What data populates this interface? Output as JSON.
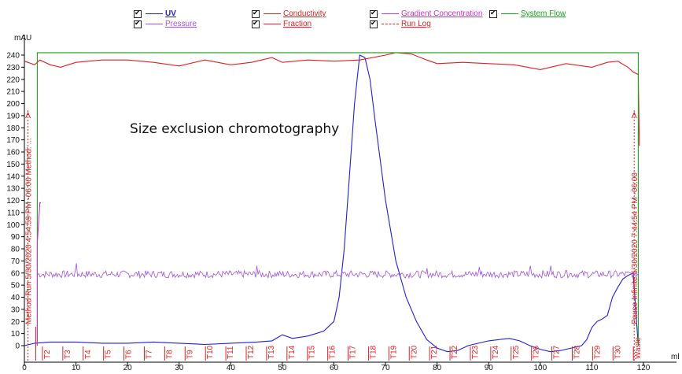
{
  "legend": [
    {
      "label": "UV",
      "color": "#1f1fd6",
      "bold": true
    },
    {
      "label": "Conductivity",
      "color": "#e02020"
    },
    {
      "label": "Gradient Concentration",
      "color": "#cc33cc"
    },
    {
      "label": "System Flow",
      "color": "#1aa01a"
    },
    {
      "label": "Pressure",
      "color": "#a050e0"
    },
    {
      "label": "Fraction",
      "color": "#e02020"
    },
    {
      "label": "Run Log",
      "color": "#e02020"
    }
  ],
  "chart_data": {
    "type": "line",
    "title": "Size exclusion chromotography",
    "ylabel": "mAU",
    "xlabel": "ml",
    "xlim": [
      0,
      120
    ],
    "ylim": [
      0,
      240
    ],
    "x_ticks": [
      0,
      10,
      20,
      30,
      40,
      50,
      60,
      70,
      80,
      90,
      100,
      110,
      120
    ],
    "y_ticks": [
      0,
      10,
      20,
      30,
      40,
      50,
      60,
      70,
      80,
      90,
      100,
      110,
      120,
      130,
      140,
      150,
      160,
      170,
      180,
      190,
      200,
      210,
      220,
      230,
      240
    ],
    "series": [
      {
        "name": "UV",
        "color": "#1f1fd6",
        "points": [
          [
            0,
            0
          ],
          [
            2,
            2
          ],
          [
            5,
            3
          ],
          [
            10,
            3
          ],
          [
            15,
            2
          ],
          [
            20,
            2
          ],
          [
            25,
            3
          ],
          [
            30,
            2
          ],
          [
            35,
            1
          ],
          [
            40,
            2
          ],
          [
            45,
            3
          ],
          [
            48,
            4
          ],
          [
            50,
            9
          ],
          [
            52,
            6
          ],
          [
            55,
            8
          ],
          [
            58,
            12
          ],
          [
            60,
            20
          ],
          [
            61,
            40
          ],
          [
            62,
            80
          ],
          [
            63,
            140
          ],
          [
            64,
            200
          ],
          [
            65,
            240
          ],
          [
            66,
            238
          ],
          [
            67,
            220
          ],
          [
            68,
            185
          ],
          [
            70,
            120
          ],
          [
            72,
            70
          ],
          [
            74,
            40
          ],
          [
            76,
            20
          ],
          [
            78,
            5
          ],
          [
            80,
            -2
          ],
          [
            82,
            -5
          ],
          [
            84,
            -4
          ],
          [
            86,
            0
          ],
          [
            88,
            2
          ],
          [
            90,
            4
          ],
          [
            92,
            5
          ],
          [
            94,
            6
          ],
          [
            96,
            4
          ],
          [
            98,
            0
          ],
          [
            100,
            -3
          ],
          [
            102,
            -5
          ],
          [
            104,
            -4
          ],
          [
            106,
            -2
          ],
          [
            108,
            0
          ],
          [
            109,
            5
          ],
          [
            110,
            15
          ],
          [
            111,
            20
          ],
          [
            112,
            22
          ],
          [
            113,
            25
          ],
          [
            114,
            40
          ],
          [
            115,
            48
          ],
          [
            116,
            55
          ],
          [
            117,
            58
          ],
          [
            118,
            60
          ],
          [
            119,
            0
          ]
        ]
      },
      {
        "name": "Conductivity",
        "color": "#e02020",
        "points": [
          [
            0,
            235
          ],
          [
            2,
            232
          ],
          [
            3,
            236
          ],
          [
            5,
            232
          ],
          [
            7,
            230
          ],
          [
            10,
            234
          ],
          [
            15,
            236
          ],
          [
            20,
            236
          ],
          [
            25,
            234
          ],
          [
            30,
            231
          ],
          [
            35,
            236
          ],
          [
            40,
            232
          ],
          [
            44,
            234
          ],
          [
            48,
            238
          ],
          [
            50,
            234
          ],
          [
            55,
            236
          ],
          [
            60,
            235
          ],
          [
            65,
            236
          ],
          [
            70,
            240
          ],
          [
            72,
            242
          ],
          [
            75,
            241
          ],
          [
            78,
            236
          ],
          [
            80,
            233
          ],
          [
            85,
            234
          ],
          [
            90,
            233
          ],
          [
            95,
            232
          ],
          [
            100,
            228
          ],
          [
            105,
            233
          ],
          [
            110,
            230
          ],
          [
            113,
            234
          ],
          [
            115,
            235
          ],
          [
            117,
            230
          ],
          [
            118,
            226
          ],
          [
            119,
            224
          ],
          [
            119.2,
            165
          ]
        ]
      },
      {
        "name": "System Flow",
        "color": "#1aa01a",
        "points": [
          [
            2.5,
            0
          ],
          [
            2.5,
            242
          ],
          [
            119,
            242
          ],
          [
            119,
            0
          ]
        ]
      },
      {
        "name": "Pressure",
        "color": "#a050e0",
        "base": 60,
        "noise": 3,
        "start": 2.5,
        "end": 119,
        "spikes": [
          [
            10,
            68
          ],
          [
            45,
            66
          ],
          [
            78,
            64
          ],
          [
            88,
            65
          ],
          [
            98,
            66
          ],
          [
            102,
            66
          ],
          [
            105,
            62
          ]
        ]
      },
      {
        "name": "Gradient Concentration",
        "color": "#cc33cc",
        "points": [
          [
            2.5,
            0
          ],
          [
            2.5,
            85
          ],
          [
            3.0,
            118
          ],
          [
            3.2,
            118
          ]
        ]
      }
    ],
    "fractions": [
      "T2",
      "T3",
      "T4",
      "T5",
      "T6",
      "T7",
      "T8",
      "T9",
      "T10",
      "T11",
      "T12",
      "T13",
      "T14",
      "T15",
      "T16",
      "T17",
      "T18",
      "T19",
      "T20",
      "T21",
      "T22",
      "T23",
      "T24",
      "T25",
      "T26",
      "T27",
      "T28",
      "T29",
      "T30",
      "Waste"
    ],
    "run_log": [
      {
        "x": 0.7,
        "text": "Method Run 5/30/2020 4:54:59 PM -06:00 Method: ..."
      },
      {
        "x": 118.2,
        "text": "Pause Infinite 5/30/2020 7:44:54 PM -06:00"
      }
    ]
  }
}
